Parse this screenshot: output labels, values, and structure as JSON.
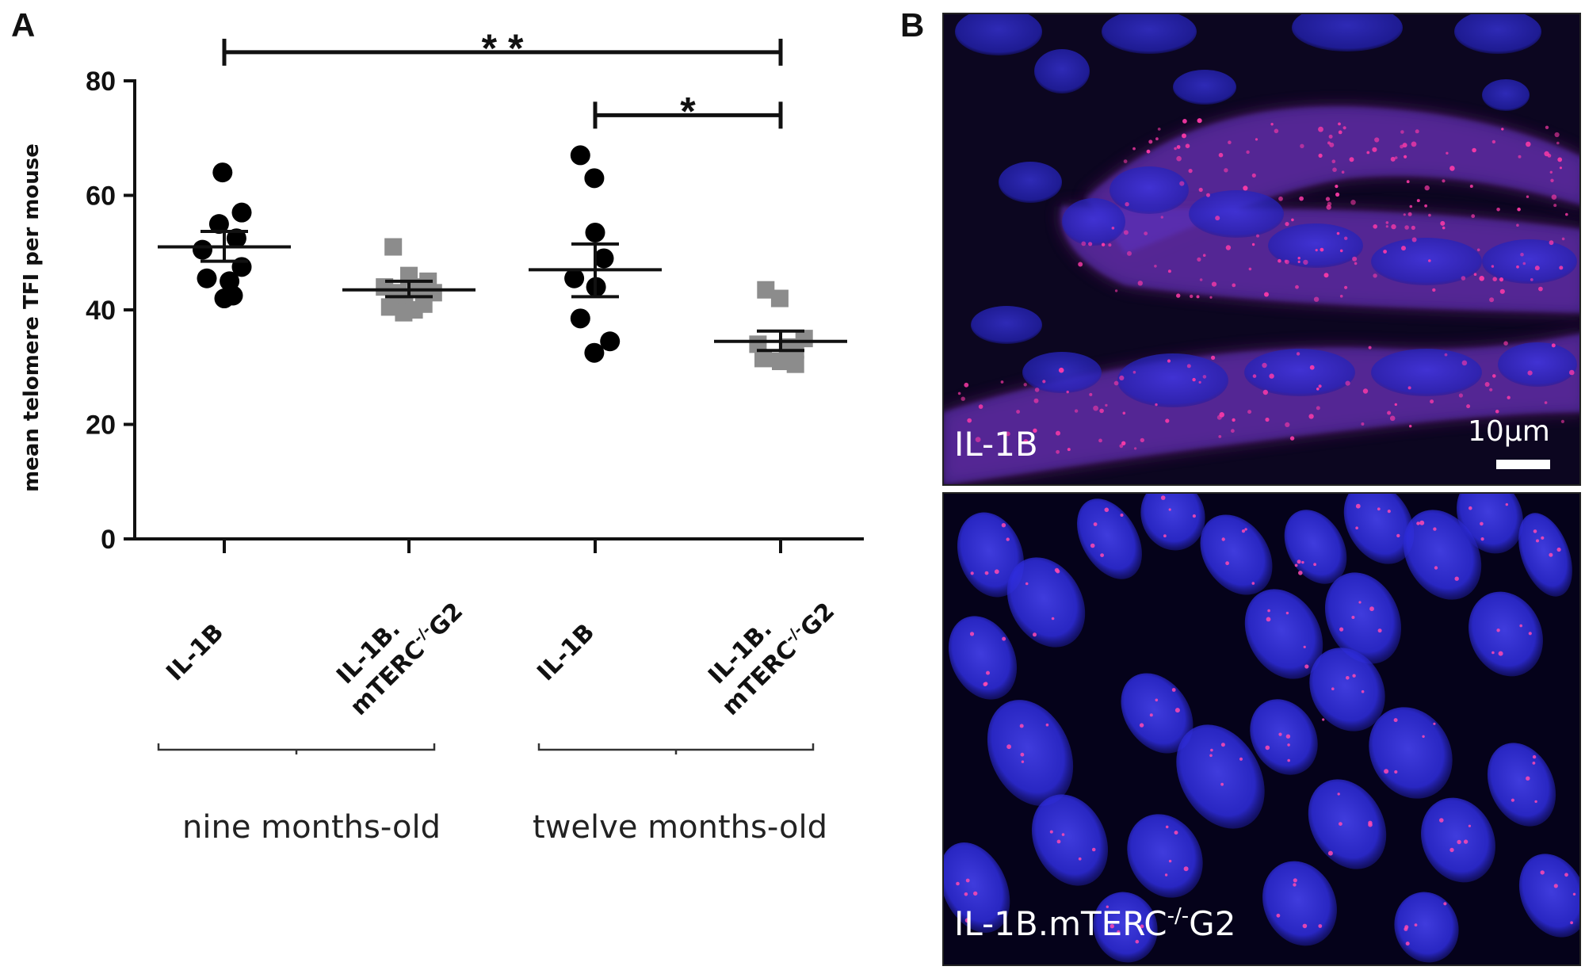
{
  "panels": {
    "a_label": "A",
    "b_label": "B"
  },
  "chart_data": {
    "type": "scatter",
    "title": "",
    "ylabel": "mean telomere TFI per mouse",
    "ylim": [
      0,
      80
    ],
    "yticks": [
      0,
      20,
      40,
      60,
      80
    ],
    "categories": [
      {
        "main": "IL-1B",
        "line2": "",
        "sup": "",
        "tail": ""
      },
      {
        "main": "IL-1B.",
        "line2": "mTERC",
        "sup": "-/-",
        "tail": "G2"
      },
      {
        "main": "IL-1B",
        "line2": "",
        "sup": "",
        "tail": ""
      },
      {
        "main": "IL-1B.",
        "line2": "mTERC",
        "sup": "-/-",
        "tail": "G2"
      }
    ],
    "groups": [
      {
        "label": "nine months-old",
        "categories": [
          0,
          1
        ]
      },
      {
        "label": "twelve months-old",
        "categories": [
          2,
          3
        ]
      }
    ],
    "series": [
      {
        "category": 0,
        "marker": "circle",
        "color": "#000000",
        "values": [
          64,
          57,
          55,
          52.5,
          50.5,
          47.5,
          45.5,
          45,
          42,
          42.5
        ],
        "jitter": [
          -0.02,
          0.2,
          -0.06,
          0.14,
          -0.25,
          0.2,
          -0.2,
          0.06,
          0.0,
          0.1
        ],
        "mean": 51,
        "sem_low": 48.5,
        "sem_high": 53.7
      },
      {
        "category": 1,
        "marker": "square",
        "color": "#8c8c8c",
        "values": [
          51,
          46,
          45,
          44,
          44,
          43,
          43,
          42,
          41,
          40.5,
          40,
          39.5
        ],
        "jitter": [
          -0.18,
          0.0,
          0.22,
          -0.28,
          0.1,
          -0.12,
          0.28,
          -0.05,
          0.17,
          -0.22,
          0.06,
          -0.06
        ],
        "mean": 43.5,
        "sem_low": 42.3,
        "sem_high": 45
      },
      {
        "category": 2,
        "marker": "circle",
        "color": "#000000",
        "values": [
          67,
          63,
          53.5,
          49,
          45.5,
          44,
          38.5,
          34.5,
          32.5
        ],
        "jitter": [
          -0.17,
          -0.01,
          0.0,
          0.1,
          -0.24,
          0.01,
          -0.17,
          0.17,
          -0.01
        ],
        "mean": 47,
        "sem_low": 42.3,
        "sem_high": 51.5
      },
      {
        "category": 3,
        "marker": "square",
        "color": "#8c8c8c",
        "values": [
          43.5,
          42,
          35,
          34,
          33.5,
          33,
          31.5,
          31,
          30.5,
          31
        ],
        "jitter": [
          -0.17,
          -0.01,
          0.27,
          -0.26,
          0.08,
          0.17,
          -0.2,
          0.0,
          0.17,
          0.09
        ],
        "mean": 34.5,
        "sem_low": 32.9,
        "sem_high": 36.3
      }
    ],
    "significance": [
      {
        "from": 0,
        "to": 3,
        "y": 85,
        "label": "* *"
      },
      {
        "from": 2,
        "to": 3,
        "y": 74,
        "label": "*"
      }
    ]
  },
  "micrographs": [
    {
      "label": "IL-1B",
      "label_sup": "",
      "label_tail": "",
      "scale_bar": "10μm"
    },
    {
      "label": "IL-1B.mTERC",
      "label_sup": "-/-",
      "label_tail": "G2",
      "scale_bar": ""
    }
  ]
}
